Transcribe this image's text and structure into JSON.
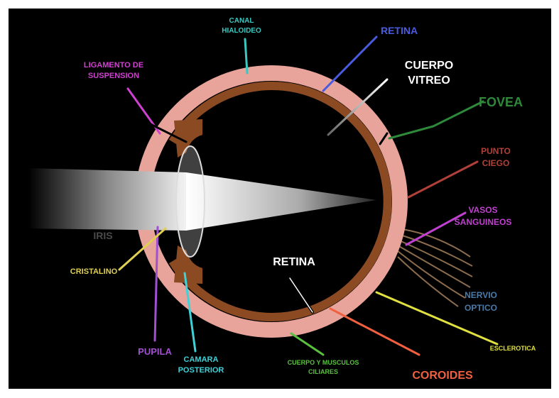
{
  "labels": [
    {
      "lines": [
        "CANAL",
        "HIALOIDEO"
      ],
      "color": "#3cc8c0"
    },
    {
      "lines": [
        "RETINA"
      ],
      "color": "#4a5be0"
    },
    {
      "lines": [
        "CUERPO",
        "VITREO"
      ],
      "color": "#ffffff"
    },
    {
      "lines": [
        "FOVEA"
      ],
      "color": "#2e8a3a"
    },
    {
      "lines": [
        "PUNTO",
        "CIEGO"
      ],
      "color": "#b04038"
    },
    {
      "lines": [
        "VASOS",
        "SANGUINEOS"
      ],
      "color": "#c040d0"
    },
    {
      "lines": [
        "NERVIO",
        "OPTICO"
      ],
      "color": "#4a7aa8"
    },
    {
      "lines": [
        "ESCLEROTICA"
      ],
      "color": "#e0e040"
    },
    {
      "lines": [
        "COROIDES"
      ],
      "color": "#f06040"
    },
    {
      "lines": [
        "CUERPO Y MUSCULOS",
        "CILIARES"
      ],
      "color": "#5ac040"
    },
    {
      "lines": [
        "RETINA"
      ],
      "color": "#ffffff"
    },
    {
      "lines": [
        "CAMARA",
        "POSTERIOR"
      ],
      "color": "#40d0d8"
    },
    {
      "lines": [
        "PUPILA"
      ],
      "color": "#a050d0"
    },
    {
      "lines": [
        "CRISTALINO"
      ],
      "color": "#e0d050"
    },
    {
      "lines": [
        "LIGAMENTO DE",
        "SUSPENSION"
      ],
      "color": "#d040d0"
    },
    {
      "lines": [
        "IRIS"
      ],
      "color": "#4a4a4a"
    }
  ]
}
